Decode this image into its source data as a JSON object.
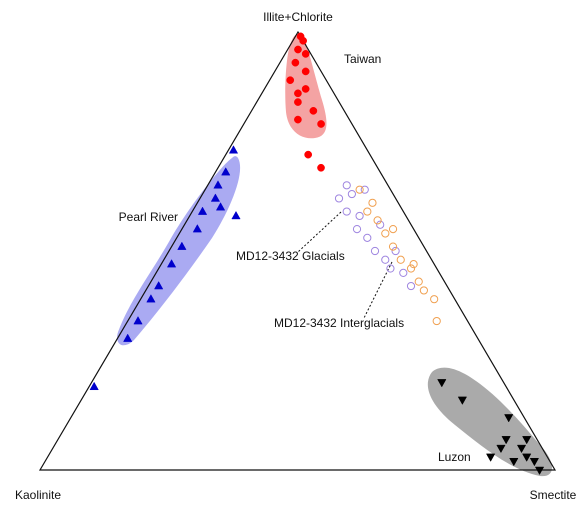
{
  "chart_data": {
    "type": "ternary",
    "vertices": [
      "Illite+Chlorite",
      "Kaolinite",
      "Smectite"
    ],
    "series": [
      {
        "name": "Taiwan",
        "color": "#ff0000",
        "marker": "circle",
        "filled": true,
        "illite": [
          99,
          98,
          96,
          95,
          93,
          91,
          89,
          87,
          86,
          82,
          80,
          79,
          84,
          72,
          69
        ],
        "smectite": [
          1,
          2,
          2,
          4,
          3,
          6,
          4,
          8,
          7,
          12,
          10,
          15,
          8,
          16,
          20
        ],
        "kaolinite": [
          0,
          0,
          2,
          1,
          4,
          3,
          7,
          5,
          7,
          6,
          10,
          6,
          8,
          12,
          11
        ]
      },
      {
        "name": "Pearl River",
        "color": "#0000cc",
        "marker": "triangle",
        "filled": true,
        "illite": [
          73,
          68,
          65,
          62,
          59,
          60,
          55,
          51,
          47,
          42,
          39,
          34,
          30,
          19,
          58
        ],
        "smectite": [
          1,
          2,
          2,
          3,
          2,
          5,
          3,
          2,
          2,
          2,
          2,
          2,
          2,
          1,
          9
        ],
        "kaolinite": [
          26,
          30,
          33,
          35,
          39,
          35,
          42,
          47,
          51,
          56,
          59,
          64,
          68,
          80,
          33
        ]
      },
      {
        "name": "Luzon",
        "color": "#000000",
        "marker": "triangle-down",
        "filled": true,
        "illite": [
          20,
          16,
          12,
          3,
          7,
          5,
          3,
          2,
          0,
          7,
          2,
          5
        ],
        "smectite": [
          68,
          74,
          85,
          86,
          87,
          91,
          93,
          95,
          97,
          91,
          91,
          87
        ],
        "kaolinite": [
          12,
          10,
          3,
          11,
          6,
          4,
          4,
          3,
          3,
          2,
          7,
          8
        ]
      },
      {
        "name": "MD12-3432 Glacials",
        "color": "#9f86e0",
        "marker": "circle",
        "filled": false,
        "illite": [
          65,
          63,
          59,
          58,
          55,
          53,
          50,
          48,
          46,
          45,
          42,
          64,
          56,
          62,
          50
        ],
        "smectite": [
          27,
          29,
          30,
          33,
          34,
          37,
          40,
          43,
          45,
          48,
          51,
          31,
          38,
          27,
          44
        ],
        "kaolinite": [
          8,
          8,
          11,
          9,
          11,
          10,
          10,
          9,
          9,
          7,
          7,
          5,
          6,
          11,
          6
        ]
      },
      {
        "name": "MD12-3432 Interglacials",
        "color": "#f0a050",
        "marker": "circle",
        "filled": false,
        "illite": [
          64,
          61,
          57,
          54,
          51,
          48,
          46,
          43,
          41,
          39,
          34,
          59,
          55,
          47
        ],
        "smectite": [
          30,
          34,
          37,
          40,
          43,
          46,
          49,
          52,
          54,
          57,
          60,
          34,
          41,
          49
        ],
        "kaolinite": [
          6,
          5,
          6,
          6,
          6,
          6,
          5,
          5,
          5,
          4,
          6,
          7,
          4,
          4
        ]
      }
    ]
  }
}
